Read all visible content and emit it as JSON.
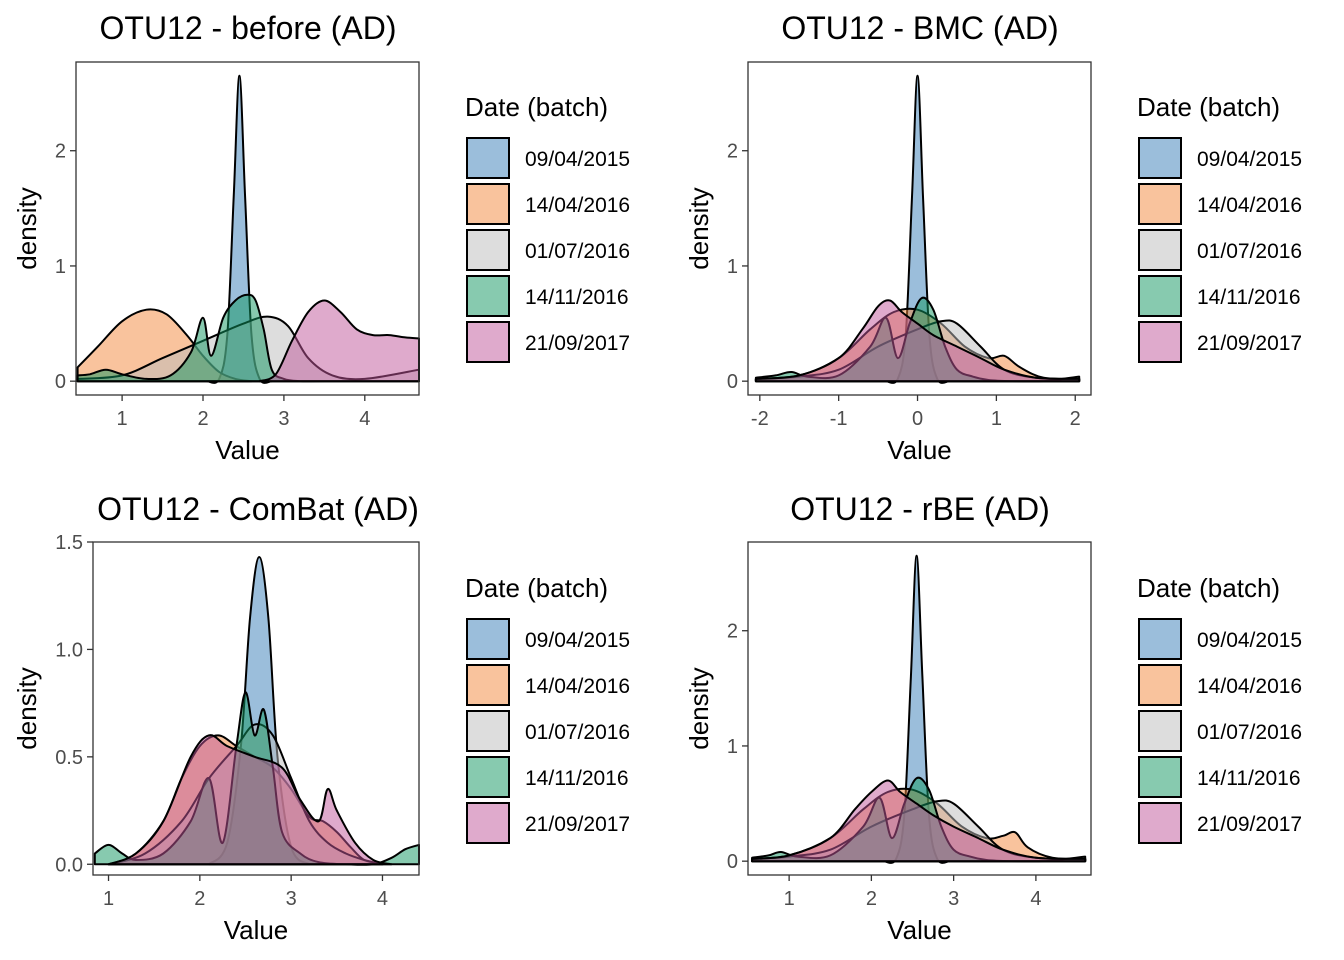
{
  "batch_colors": {
    "09/04/2015": "#377EB8",
    "14/04/2016": "#F4873C",
    "01/07/2016": "#BBBBBB",
    "14/11/2016": "#109660",
    "21/09/2017": "#C0559A"
  },
  "chart_data": [
    {
      "type": "area",
      "title": "OTU12 - before (AD)",
      "xlabel": "Value",
      "ylabel": "density",
      "xlim": [
        0.43,
        4.67
      ],
      "ylim": [
        -0.12,
        2.77
      ],
      "xticks": [
        1,
        2,
        3,
        4
      ],
      "yticks": [
        0,
        1,
        2
      ],
      "legend": {
        "title": "Date (batch)",
        "entries": [
          "09/04/2015",
          "14/04/2016",
          "01/07/2016",
          "14/11/2016",
          "21/09/2017"
        ]
      },
      "series": [
        {
          "name": "09/04/2015",
          "x": [
            2.05,
            2.2,
            2.3,
            2.38,
            2.45,
            2.52,
            2.6,
            2.7,
            2.85
          ],
          "y": [
            0,
            0.02,
            0.4,
            1.6,
            2.65,
            1.6,
            0.4,
            0.02,
            0
          ]
        },
        {
          "name": "14/04/2016",
          "x": [
            0.45,
            0.7,
            1.0,
            1.3,
            1.55,
            1.8,
            2.0,
            2.2,
            2.4,
            2.6
          ],
          "y": [
            0.12,
            0.3,
            0.52,
            0.62,
            0.58,
            0.4,
            0.22,
            0.08,
            0.02,
            0
          ]
        },
        {
          "name": "01/07/2016",
          "x": [
            0.45,
            1.0,
            1.5,
            2.0,
            2.5,
            2.8,
            3.05,
            3.3,
            3.6,
            4.0,
            4.67
          ],
          "y": [
            0.02,
            0.05,
            0.2,
            0.35,
            0.5,
            0.56,
            0.48,
            0.2,
            0.05,
            0.02,
            0.1
          ]
        },
        {
          "name": "14/11/2016",
          "x": [
            0.45,
            0.6,
            0.8,
            1.0,
            1.3,
            1.6,
            1.85,
            2.0,
            2.1,
            2.25,
            2.4,
            2.55,
            2.65,
            2.75,
            2.85,
            3.0,
            3.2,
            3.5,
            4.67
          ],
          "y": [
            0.05,
            0.06,
            0.1,
            0.06,
            0.02,
            0.05,
            0.25,
            0.55,
            0.22,
            0.55,
            0.7,
            0.75,
            0.7,
            0.45,
            0.1,
            0.02,
            0,
            0,
            0
          ]
        },
        {
          "name": "21/09/2017",
          "x": [
            2.7,
            2.9,
            3.1,
            3.3,
            3.5,
            3.7,
            3.9,
            4.1,
            4.3,
            4.5,
            4.67
          ],
          "y": [
            0,
            0.06,
            0.35,
            0.6,
            0.7,
            0.6,
            0.45,
            0.4,
            0.4,
            0.38,
            0.37
          ]
        }
      ]
    },
    {
      "type": "area",
      "title": "OTU12 - BMC (AD)",
      "xlabel": "Value",
      "ylabel": "density",
      "xlim": [
        -2.15,
        2.2
      ],
      "ylim": [
        -0.12,
        2.77
      ],
      "xticks": [
        -2,
        -1,
        0,
        1,
        2
      ],
      "yticks": [
        0,
        1,
        2
      ],
      "legend": {
        "title": "Date (batch)",
        "entries": [
          "09/04/2015",
          "14/04/2016",
          "01/07/2016",
          "14/11/2016",
          "21/09/2017"
        ]
      },
      "series": [
        {
          "name": "09/04/2015",
          "x": [
            -0.4,
            -0.25,
            -0.15,
            -0.07,
            0.0,
            0.07,
            0.15,
            0.25,
            0.4
          ],
          "y": [
            0,
            0.02,
            0.4,
            1.6,
            2.65,
            1.6,
            0.4,
            0.02,
            0
          ]
        },
        {
          "name": "14/04/2016",
          "x": [
            -2.05,
            -1.5,
            -1.0,
            -0.6,
            -0.3,
            0.0,
            0.3,
            0.6,
            0.9,
            1.1,
            1.3,
            1.6,
            2.05
          ],
          "y": [
            0.02,
            0.05,
            0.2,
            0.45,
            0.6,
            0.62,
            0.5,
            0.3,
            0.2,
            0.22,
            0.12,
            0.03,
            0.02
          ]
        },
        {
          "name": "01/07/2016",
          "x": [
            -2.05,
            -1.5,
            -1.0,
            -0.5,
            0.0,
            0.3,
            0.5,
            0.8,
            1.1,
            1.5,
            2.05
          ],
          "y": [
            0.02,
            0.04,
            0.1,
            0.3,
            0.45,
            0.52,
            0.5,
            0.3,
            0.1,
            0.03,
            0.02
          ]
        },
        {
          "name": "14/11/2016",
          "x": [
            -2.05,
            -1.8,
            -1.6,
            -1.4,
            -1.0,
            -0.6,
            -0.4,
            -0.25,
            -0.1,
            0.05,
            0.2,
            0.35,
            0.5,
            0.7,
            0.9,
            1.2,
            1.6,
            2.05
          ],
          "y": [
            0.03,
            0.05,
            0.08,
            0.04,
            0.05,
            0.3,
            0.55,
            0.2,
            0.5,
            0.72,
            0.62,
            0.3,
            0.1,
            0.04,
            0.01,
            0,
            0,
            0.04
          ]
        },
        {
          "name": "21/09/2017",
          "x": [
            -2.05,
            -1.5,
            -1.0,
            -0.7,
            -0.5,
            -0.35,
            -0.2,
            0.0,
            0.2,
            0.5,
            0.8,
            1.1,
            1.5,
            2.05
          ],
          "y": [
            0.02,
            0.05,
            0.2,
            0.45,
            0.65,
            0.7,
            0.6,
            0.5,
            0.4,
            0.3,
            0.2,
            0.1,
            0.03,
            0.02
          ]
        }
      ]
    },
    {
      "type": "area",
      "title": "OTU12 - ComBat (AD)",
      "xlabel": "Value",
      "ylabel": "density",
      "xlim": [
        0.83,
        4.4
      ],
      "ylim": [
        -0.05,
        1.5
      ],
      "xticks": [
        1,
        2,
        3,
        4
      ],
      "yticks": [
        0.0,
        0.5,
        1.0,
        1.5
      ],
      "legend": {
        "title": "Date (batch)",
        "entries": [
          "09/04/2015",
          "14/04/2016",
          "01/07/2016",
          "14/11/2016",
          "21/09/2017"
        ]
      },
      "series": [
        {
          "name": "09/04/2015",
          "x": [
            2.1,
            2.3,
            2.45,
            2.55,
            2.65,
            2.75,
            2.85,
            3.0,
            3.2
          ],
          "y": [
            0,
            0.1,
            0.55,
            1.15,
            1.43,
            1.15,
            0.5,
            0.08,
            0
          ]
        },
        {
          "name": "14/04/2016",
          "x": [
            1.0,
            1.3,
            1.6,
            1.8,
            2.0,
            2.2,
            2.4,
            2.6,
            2.8,
            3.0,
            3.2,
            3.35,
            3.5,
            3.65,
            3.8,
            4.0
          ],
          "y": [
            0,
            0.05,
            0.2,
            0.4,
            0.55,
            0.6,
            0.55,
            0.5,
            0.45,
            0.35,
            0.22,
            0.2,
            0.15,
            0.08,
            0.02,
            0
          ]
        },
        {
          "name": "01/07/2016",
          "x": [
            1.0,
            1.4,
            1.8,
            2.1,
            2.4,
            2.6,
            2.8,
            3.0,
            3.2,
            3.4,
            3.6,
            3.8,
            4.0
          ],
          "y": [
            0,
            0.05,
            0.2,
            0.4,
            0.55,
            0.65,
            0.6,
            0.4,
            0.2,
            0.1,
            0.05,
            0.02,
            0
          ]
        },
        {
          "name": "14/11/2016",
          "x": [
            0.85,
            1.0,
            1.15,
            1.3,
            1.6,
            1.9,
            2.1,
            2.25,
            2.4,
            2.5,
            2.6,
            2.7,
            2.8,
            2.9,
            3.1,
            3.3,
            3.6,
            3.9,
            4.1,
            4.25,
            4.4
          ],
          "y": [
            0.05,
            0.09,
            0.05,
            0.02,
            0.05,
            0.2,
            0.4,
            0.1,
            0.55,
            0.8,
            0.6,
            0.72,
            0.45,
            0.15,
            0.05,
            0.01,
            0,
            0,
            0.03,
            0.07,
            0.09
          ]
        },
        {
          "name": "21/09/2017",
          "x": [
            1.0,
            1.3,
            1.6,
            1.9,
            2.1,
            2.3,
            2.6,
            2.9,
            3.1,
            3.3,
            3.4,
            3.5,
            3.7,
            3.9,
            4.1
          ],
          "y": [
            0,
            0.05,
            0.2,
            0.5,
            0.6,
            0.55,
            0.5,
            0.45,
            0.3,
            0.2,
            0.35,
            0.25,
            0.1,
            0.02,
            0
          ]
        }
      ]
    },
    {
      "type": "area",
      "title": "OTU12 - rBE (AD)",
      "xlabel": "Value",
      "ylabel": "density",
      "xlim": [
        0.5,
        4.67
      ],
      "ylim": [
        -0.12,
        2.77
      ],
      "xticks": [
        1,
        2,
        3,
        4
      ],
      "yticks": [
        0,
        1,
        2
      ],
      "legend": {
        "title": "Date (batch)",
        "entries": [
          "09/04/2015",
          "14/04/2016",
          "01/07/2016",
          "14/11/2016",
          "21/09/2017"
        ]
      },
      "series": [
        {
          "name": "09/04/2015",
          "x": [
            2.15,
            2.3,
            2.4,
            2.48,
            2.55,
            2.62,
            2.7,
            2.8,
            2.95
          ],
          "y": [
            0,
            0.02,
            0.4,
            1.6,
            2.65,
            1.6,
            0.4,
            0.02,
            0
          ]
        },
        {
          "name": "14/04/2016",
          "x": [
            0.55,
            1.0,
            1.5,
            1.9,
            2.2,
            2.5,
            2.8,
            3.1,
            3.4,
            3.6,
            3.75,
            3.9,
            4.2,
            4.6
          ],
          "y": [
            0.02,
            0.05,
            0.2,
            0.45,
            0.6,
            0.62,
            0.5,
            0.3,
            0.2,
            0.22,
            0.25,
            0.12,
            0.03,
            0.02
          ]
        },
        {
          "name": "01/07/2016",
          "x": [
            0.55,
            1.0,
            1.5,
            2.0,
            2.5,
            2.8,
            3.0,
            3.3,
            3.6,
            4.0,
            4.6
          ],
          "y": [
            0.02,
            0.04,
            0.1,
            0.3,
            0.45,
            0.52,
            0.5,
            0.3,
            0.1,
            0.03,
            0.02
          ]
        },
        {
          "name": "14/11/2016",
          "x": [
            0.55,
            0.75,
            0.9,
            1.1,
            1.5,
            1.9,
            2.1,
            2.25,
            2.4,
            2.55,
            2.7,
            2.85,
            3.0,
            3.2,
            3.4,
            3.7,
            4.1,
            4.6
          ],
          "y": [
            0.03,
            0.05,
            0.08,
            0.04,
            0.05,
            0.3,
            0.55,
            0.2,
            0.5,
            0.72,
            0.62,
            0.3,
            0.1,
            0.04,
            0.01,
            0,
            0,
            0.04
          ]
        },
        {
          "name": "21/09/2017",
          "x": [
            0.55,
            1.0,
            1.5,
            1.8,
            2.0,
            2.2,
            2.35,
            2.55,
            2.75,
            3.0,
            3.3,
            3.6,
            4.0,
            4.6
          ],
          "y": [
            0.02,
            0.05,
            0.2,
            0.45,
            0.6,
            0.7,
            0.6,
            0.5,
            0.4,
            0.3,
            0.2,
            0.1,
            0.03,
            0.02
          ]
        }
      ]
    }
  ]
}
